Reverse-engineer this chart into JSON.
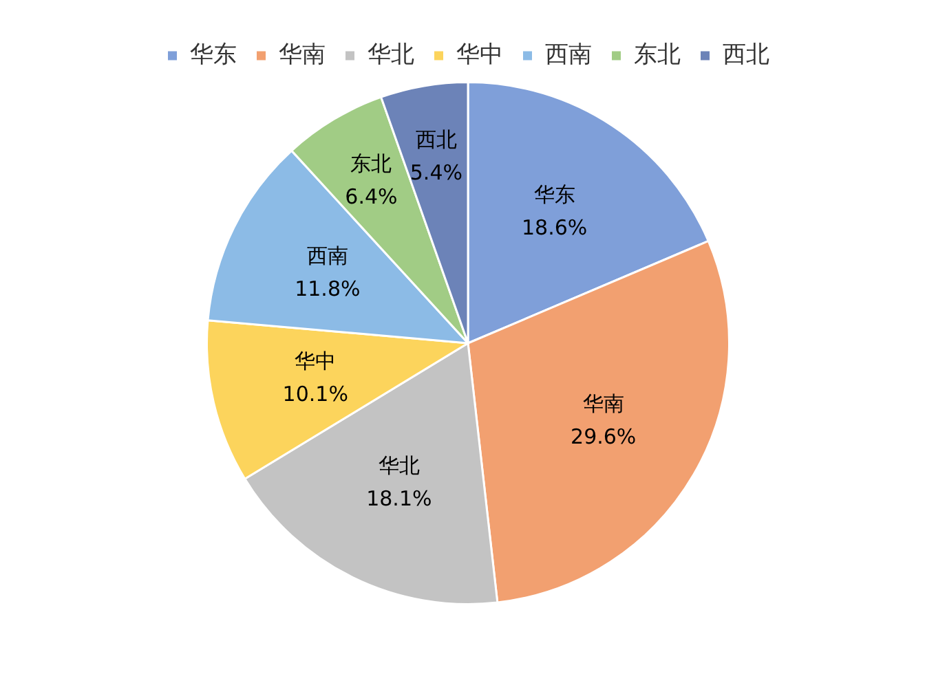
{
  "chart_data": {
    "type": "pie",
    "categories": [
      "华东",
      "华南",
      "华北",
      "华中",
      "西南",
      "东北",
      "西北"
    ],
    "values": [
      18.6,
      29.6,
      18.1,
      10.1,
      11.8,
      6.4,
      5.4
    ],
    "colors": [
      "#7f9fd9",
      "#f2a070",
      "#c3c3c3",
      "#fcd45c",
      "#8cbbe6",
      "#a1cc85",
      "#6c83b8"
    ],
    "value_labels": [
      "18.6%",
      "29.6%",
      "18.1%",
      "10.1%",
      "11.8%",
      "6.4%",
      "5.4%"
    ],
    "legend": "top"
  }
}
